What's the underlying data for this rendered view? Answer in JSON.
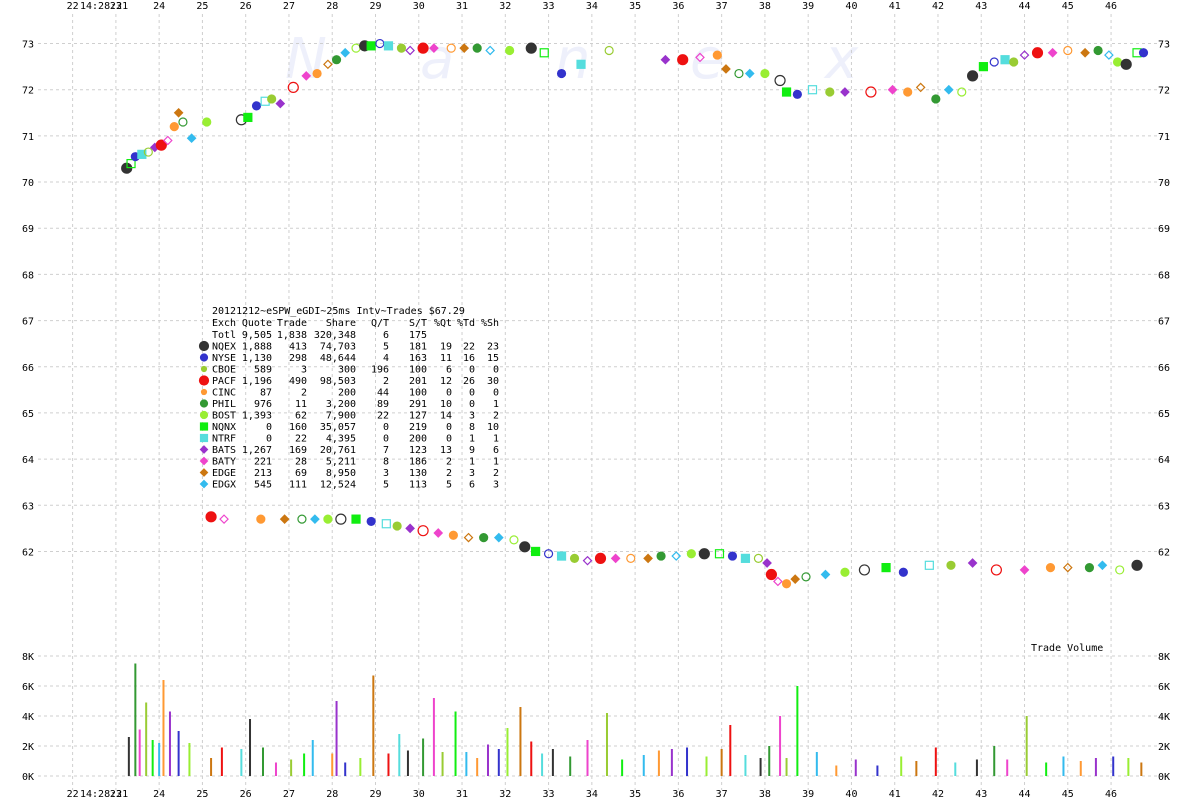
{
  "chart_data": {
    "type": "scatter",
    "title": "20121212~eSPW_eGDI~25ms Intv~Trades $67.29",
    "watermark": [
      "N",
      "a",
      "n",
      "e",
      "x"
    ],
    "time_start": "14:28:21",
    "x_ticks": [
      "22",
      "23",
      "24",
      "25",
      "26",
      "27",
      "28",
      "29",
      "30",
      "31",
      "32",
      "33",
      "34",
      "35",
      "36",
      "37",
      "38",
      "39",
      "40",
      "41",
      "42",
      "43",
      "44",
      "45",
      "46"
    ],
    "x_range": [
      21.2,
      46.9
    ],
    "y_ticks": [
      "73",
      "72",
      "71",
      "70",
      "69",
      "68",
      "67",
      "66",
      "65",
      "64",
      "63",
      "62"
    ],
    "y_range": [
      61.1,
      73.25
    ],
    "volume_label": "Trade Volume",
    "volume_ticks": [
      "8K",
      "6K",
      "4K",
      "2K",
      "0K"
    ],
    "volume_range": [
      0,
      8000
    ],
    "table": {
      "header": [
        "Exch",
        "Quote",
        "Trade",
        "Share",
        "Q/T",
        "S/T",
        "%Qt",
        "%Td",
        "%Sh"
      ],
      "rows": [
        {
          "exch": "Totl",
          "quote": "9,505",
          "trade": "1,838",
          "share": "320,348",
          "qt": "6",
          "st": "175",
          "pqt": "",
          "ptd": "",
          "psh": "",
          "color": "",
          "marker": "none"
        },
        {
          "exch": "NQEX",
          "quote": "1,888",
          "trade": "413",
          "share": "74,703",
          "qt": "5",
          "st": "181",
          "pqt": "19",
          "ptd": "22",
          "psh": "23",
          "color": "#333333",
          "marker": "circle-large"
        },
        {
          "exch": "NYSE",
          "quote": "1,130",
          "trade": "298",
          "share": "48,644",
          "qt": "4",
          "st": "163",
          "pqt": "11",
          "ptd": "16",
          "psh": "15",
          "color": "#3333cc",
          "marker": "circle"
        },
        {
          "exch": "CBOE",
          "quote": "589",
          "trade": "3",
          "share": "300",
          "qt": "196",
          "st": "100",
          "pqt": "6",
          "ptd": "0",
          "psh": "0",
          "color": "#99cc33",
          "marker": "circle-small"
        },
        {
          "exch": "PACF",
          "quote": "1,196",
          "trade": "490",
          "share": "98,503",
          "qt": "2",
          "st": "201",
          "pqt": "12",
          "ptd": "26",
          "psh": "30",
          "color": "#ee1111",
          "marker": "circle-large"
        },
        {
          "exch": "CINC",
          "quote": "87",
          "trade": "2",
          "share": "200",
          "qt": "44",
          "st": "100",
          "pqt": "0",
          "ptd": "0",
          "psh": "0",
          "color": "#ff9933",
          "marker": "circle-small"
        },
        {
          "exch": "PHIL",
          "quote": "976",
          "trade": "11",
          "share": "3,200",
          "qt": "89",
          "st": "291",
          "pqt": "10",
          "ptd": "0",
          "psh": "1",
          "color": "#339933",
          "marker": "circle"
        },
        {
          "exch": "BOST",
          "quote": "1,393",
          "trade": "62",
          "share": "7,900",
          "qt": "22",
          "st": "127",
          "pqt": "14",
          "ptd": "3",
          "psh": "2",
          "color": "#99ee33",
          "marker": "circle"
        },
        {
          "exch": "NQNX",
          "quote": "0",
          "trade": "160",
          "share": "35,057",
          "qt": "0",
          "st": "219",
          "pqt": "0",
          "ptd": "8",
          "psh": "10",
          "color": "#11ee11",
          "marker": "square"
        },
        {
          "exch": "NTRF",
          "quote": "0",
          "trade": "22",
          "share": "4,395",
          "qt": "0",
          "st": "200",
          "pqt": "0",
          "ptd": "1",
          "psh": "1",
          "color": "#55dddd",
          "marker": "square"
        },
        {
          "exch": "BATS",
          "quote": "1,267",
          "trade": "169",
          "share": "20,761",
          "qt": "7",
          "st": "123",
          "pqt": "13",
          "ptd": "9",
          "psh": "6",
          "color": "#9933cc",
          "marker": "diamond"
        },
        {
          "exch": "BATY",
          "quote": "221",
          "trade": "28",
          "share": "5,211",
          "qt": "8",
          "st": "186",
          "pqt": "2",
          "ptd": "1",
          "psh": "1",
          "color": "#ee44cc",
          "marker": "diamond"
        },
        {
          "exch": "EDGE",
          "quote": "213",
          "trade": "69",
          "share": "8,950",
          "qt": "3",
          "st": "130",
          "pqt": "2",
          "ptd": "3",
          "psh": "2",
          "color": "#cc7711",
          "marker": "diamond"
        },
        {
          "exch": "EDGX",
          "quote": "545",
          "trade": "111",
          "share": "12,524",
          "qt": "5",
          "st": "113",
          "pqt": "5",
          "ptd": "6",
          "psh": "3",
          "color": "#33bbee",
          "marker": "diamond"
        }
      ]
    },
    "series": [
      {
        "name": "upper",
        "points": [
          [
            23.25,
            70.3
          ],
          [
            23.35,
            70.4
          ],
          [
            23.45,
            70.55
          ],
          [
            23.6,
            70.6
          ],
          [
            23.75,
            70.65
          ],
          [
            23.9,
            70.75
          ],
          [
            24.05,
            70.8
          ],
          [
            24.2,
            70.9
          ],
          [
            24.35,
            71.2
          ],
          [
            24.45,
            71.5
          ],
          [
            24.55,
            71.3
          ],
          [
            24.75,
            70.95
          ],
          [
            25.1,
            71.3
          ],
          [
            25.9,
            71.35
          ],
          [
            26.05,
            71.4
          ],
          [
            26.25,
            71.65
          ],
          [
            26.45,
            71.75
          ],
          [
            26.6,
            71.8
          ],
          [
            26.8,
            71.7
          ],
          [
            27.1,
            72.05
          ],
          [
            27.4,
            72.3
          ],
          [
            27.65,
            72.35
          ],
          [
            27.9,
            72.55
          ],
          [
            28.1,
            72.65
          ],
          [
            28.3,
            72.8
          ],
          [
            28.55,
            72.9
          ],
          [
            28.75,
            72.95
          ],
          [
            28.9,
            72.95
          ],
          [
            29.1,
            73.0
          ],
          [
            29.3,
            72.95
          ],
          [
            29.6,
            72.9
          ],
          [
            29.8,
            72.85
          ],
          [
            30.1,
            72.9
          ],
          [
            30.35,
            72.9
          ],
          [
            30.75,
            72.9
          ],
          [
            31.05,
            72.9
          ],
          [
            31.35,
            72.9
          ],
          [
            31.65,
            72.85
          ],
          [
            32.1,
            72.85
          ],
          [
            32.6,
            72.9
          ],
          [
            32.9,
            72.8
          ],
          [
            33.3,
            72.35
          ],
          [
            33.75,
            72.55
          ],
          [
            34.4,
            72.85
          ],
          [
            35.7,
            72.65
          ],
          [
            36.1,
            72.65
          ],
          [
            36.5,
            72.7
          ],
          [
            36.9,
            72.75
          ],
          [
            37.1,
            72.45
          ],
          [
            37.4,
            72.35
          ],
          [
            37.65,
            72.35
          ],
          [
            38.0,
            72.35
          ],
          [
            38.35,
            72.2
          ],
          [
            38.5,
            71.95
          ],
          [
            38.75,
            71.9
          ],
          [
            39.1,
            72.0
          ],
          [
            39.5,
            71.95
          ],
          [
            39.85,
            71.95
          ],
          [
            40.45,
            71.95
          ],
          [
            40.95,
            72.0
          ],
          [
            41.3,
            71.95
          ],
          [
            41.6,
            72.05
          ],
          [
            41.95,
            71.8
          ],
          [
            42.25,
            72.0
          ],
          [
            42.55,
            71.95
          ],
          [
            42.8,
            72.3
          ],
          [
            43.05,
            72.5
          ],
          [
            43.3,
            72.6
          ],
          [
            43.55,
            72.65
          ],
          [
            43.75,
            72.6
          ],
          [
            44.0,
            72.75
          ],
          [
            44.3,
            72.8
          ],
          [
            44.65,
            72.8
          ],
          [
            45.0,
            72.85
          ],
          [
            45.4,
            72.8
          ],
          [
            45.7,
            72.85
          ],
          [
            45.95,
            72.75
          ],
          [
            46.15,
            72.6
          ],
          [
            46.35,
            72.55
          ],
          [
            46.6,
            72.8
          ],
          [
            46.75,
            72.8
          ]
        ]
      },
      {
        "name": "lower",
        "points": [
          [
            25.2,
            62.75
          ],
          [
            25.5,
            62.7
          ],
          [
            26.35,
            62.7
          ],
          [
            26.9,
            62.7
          ],
          [
            27.3,
            62.7
          ],
          [
            27.6,
            62.7
          ],
          [
            27.9,
            62.7
          ],
          [
            28.2,
            62.7
          ],
          [
            28.55,
            62.7
          ],
          [
            28.9,
            62.65
          ],
          [
            29.25,
            62.6
          ],
          [
            29.5,
            62.55
          ],
          [
            29.8,
            62.5
          ],
          [
            30.1,
            62.45
          ],
          [
            30.45,
            62.4
          ],
          [
            30.8,
            62.35
          ],
          [
            31.15,
            62.3
          ],
          [
            31.5,
            62.3
          ],
          [
            31.85,
            62.3
          ],
          [
            32.2,
            62.25
          ],
          [
            32.45,
            62.1
          ],
          [
            32.7,
            62.0
          ],
          [
            33.0,
            61.95
          ],
          [
            33.3,
            61.9
          ],
          [
            33.6,
            61.85
          ],
          [
            33.9,
            61.8
          ],
          [
            34.2,
            61.85
          ],
          [
            34.55,
            61.85
          ],
          [
            34.9,
            61.85
          ],
          [
            35.3,
            61.85
          ],
          [
            35.6,
            61.9
          ],
          [
            35.95,
            61.9
          ],
          [
            36.3,
            61.95
          ],
          [
            36.6,
            61.95
          ],
          [
            36.95,
            61.95
          ],
          [
            37.25,
            61.9
          ],
          [
            37.55,
            61.85
          ],
          [
            37.85,
            61.85
          ],
          [
            38.05,
            61.75
          ],
          [
            38.15,
            61.5
          ],
          [
            38.3,
            61.35
          ],
          [
            38.5,
            61.3
          ],
          [
            38.7,
            61.4
          ],
          [
            38.95,
            61.45
          ],
          [
            39.4,
            61.5
          ],
          [
            39.85,
            61.55
          ],
          [
            40.3,
            61.6
          ],
          [
            40.8,
            61.65
          ],
          [
            41.2,
            61.55
          ],
          [
            41.8,
            61.7
          ],
          [
            42.3,
            61.7
          ],
          [
            42.8,
            61.75
          ],
          [
            43.35,
            61.6
          ],
          [
            44.0,
            61.6
          ],
          [
            44.6,
            61.65
          ],
          [
            45.0,
            61.65
          ],
          [
            45.5,
            61.65
          ],
          [
            45.8,
            61.7
          ],
          [
            46.2,
            61.6
          ],
          [
            46.6,
            61.7
          ]
        ]
      }
    ],
    "volume_bars": [
      [
        23.3,
        2600
      ],
      [
        23.45,
        7500
      ],
      [
        23.55,
        3100
      ],
      [
        23.7,
        4900
      ],
      [
        23.85,
        2400
      ],
      [
        24.0,
        2200
      ],
      [
        24.1,
        6400
      ],
      [
        24.25,
        4300
      ],
      [
        24.45,
        3000
      ],
      [
        24.7,
        2200
      ],
      [
        25.2,
        1200
      ],
      [
        25.45,
        1900
      ],
      [
        25.9,
        1800
      ],
      [
        26.1,
        3800
      ],
      [
        26.4,
        1900
      ],
      [
        26.7,
        900
      ],
      [
        27.05,
        1100
      ],
      [
        27.35,
        1500
      ],
      [
        27.55,
        2400
      ],
      [
        28.0,
        1500
      ],
      [
        28.1,
        5000
      ],
      [
        28.3,
        900
      ],
      [
        28.65,
        1200
      ],
      [
        28.95,
        6700
      ],
      [
        29.3,
        1500
      ],
      [
        29.55,
        2800
      ],
      [
        29.75,
        1700
      ],
      [
        30.1,
        2500
      ],
      [
        30.35,
        5200
      ],
      [
        30.55,
        1600
      ],
      [
        30.85,
        4300
      ],
      [
        31.1,
        1600
      ],
      [
        31.35,
        1200
      ],
      [
        31.6,
        2100
      ],
      [
        31.85,
        1800
      ],
      [
        32.05,
        3200
      ],
      [
        32.35,
        4600
      ],
      [
        32.6,
        2300
      ],
      [
        32.85,
        1500
      ],
      [
        33.1,
        1800
      ],
      [
        33.5,
        1300
      ],
      [
        33.9,
        2400
      ],
      [
        34.35,
        4200
      ],
      [
        34.7,
        1100
      ],
      [
        35.2,
        1400
      ],
      [
        35.55,
        1700
      ],
      [
        35.85,
        1800
      ],
      [
        36.2,
        1900
      ],
      [
        36.65,
        1300
      ],
      [
        37.0,
        1800
      ],
      [
        37.2,
        3400
      ],
      [
        37.55,
        1400
      ],
      [
        37.9,
        1200
      ],
      [
        38.1,
        2000
      ],
      [
        38.35,
        4000
      ],
      [
        38.5,
        1200
      ],
      [
        38.75,
        6000
      ],
      [
        39.2,
        1600
      ],
      [
        39.65,
        700
      ],
      [
        40.1,
        1100
      ],
      [
        40.6,
        700
      ],
      [
        41.15,
        1300
      ],
      [
        41.5,
        1000
      ],
      [
        41.95,
        1900
      ],
      [
        42.4,
        900
      ],
      [
        42.9,
        1100
      ],
      [
        43.3,
        2000
      ],
      [
        43.6,
        1100
      ],
      [
        44.05,
        4000
      ],
      [
        44.5,
        900
      ],
      [
        44.9,
        1300
      ],
      [
        45.3,
        1000
      ],
      [
        45.65,
        1200
      ],
      [
        46.05,
        1300
      ],
      [
        46.4,
        1200
      ],
      [
        46.7,
        900
      ]
    ]
  }
}
